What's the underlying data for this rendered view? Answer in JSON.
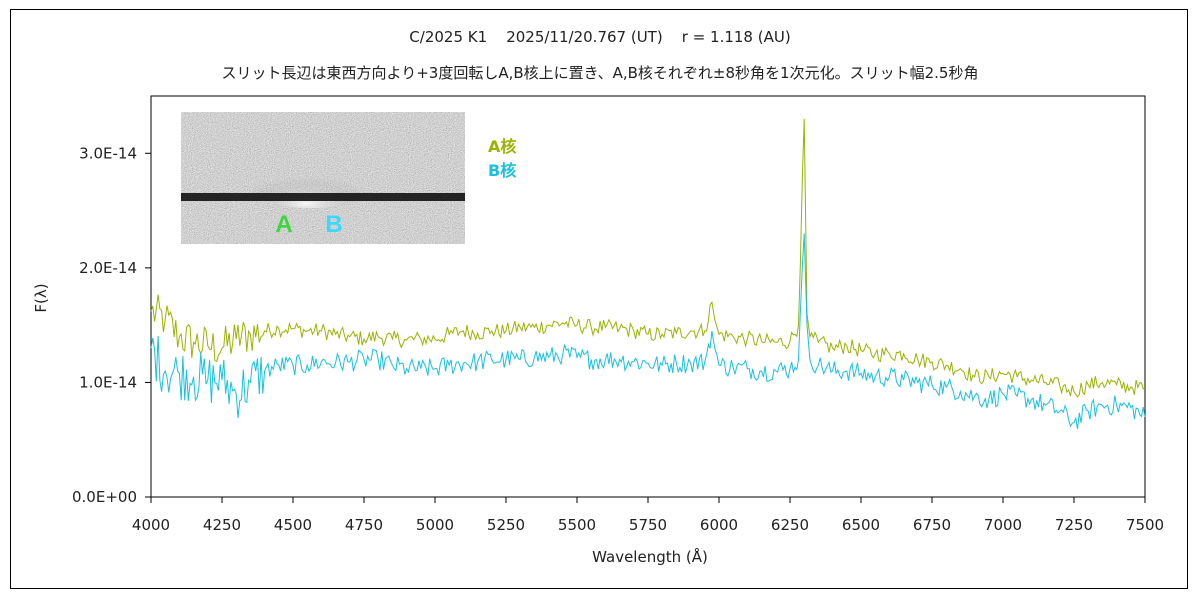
{
  "title": "C/2025 K1    2025/11/20.767 (UT)    r = 1.118 (AU)",
  "subtitle": "スリット長辺は東西方向より+3度回転しA,B核上に置き、A,B核それぞれ±8秒角を1次元化。スリット幅2.5秒角",
  "colors": {
    "seriesA": "#99b400",
    "seriesB": "#18c1e0",
    "labelA": "#3dd63d",
    "labelB": "#39d9ff"
  },
  "inset": {
    "label_a": "A",
    "label_b": "B"
  },
  "chart_data": {
    "type": "line",
    "xlabel": "Wavelength (Å)",
    "ylabel": "F(λ)",
    "xlim": [
      4000,
      7500
    ],
    "ylim": [
      0,
      3.5e-14
    ],
    "xticks": [
      4000,
      4250,
      4500,
      4750,
      5000,
      5250,
      5500,
      5750,
      6000,
      6250,
      6500,
      6750,
      7000,
      7250,
      7500
    ],
    "xtick_labels": [
      "4000",
      "4250",
      "4500",
      "4750",
      "5000",
      "5250",
      "5500",
      "5750",
      "6000",
      "6250",
      "6500",
      "6750",
      "7000",
      "7250",
      "7500"
    ],
    "yticks": [
      0,
      1e-14,
      2e-14,
      3e-14
    ],
    "ytick_labels": [
      "0.0E+00",
      "1.0E-14",
      "2.0E-14",
      "3.0E-14"
    ],
    "grid": false,
    "legend_position": "top-left",
    "series": [
      {
        "name": "A核",
        "x": [
          4000,
          4050,
          4100,
          4150,
          4200,
          4250,
          4300,
          4350,
          4400,
          4450,
          4500,
          4550,
          4600,
          4650,
          4700,
          4750,
          4800,
          4850,
          4900,
          4950,
          5000,
          5050,
          5100,
          5150,
          5200,
          5250,
          5300,
          5350,
          5400,
          5450,
          5500,
          5550,
          5600,
          5650,
          5700,
          5750,
          5800,
          5850,
          5900,
          5950,
          5975,
          5985,
          6000,
          6050,
          6100,
          6150,
          6200,
          6250,
          6280,
          6300,
          6310,
          6320,
          6350,
          6400,
          6450,
          6500,
          6550,
          6600,
          6650,
          6700,
          6750,
          6800,
          6850,
          6900,
          6950,
          7000,
          7050,
          7100,
          7150,
          7200,
          7250,
          7300,
          7350,
          7400,
          7450,
          7500
        ],
        "y": [
          1.62e-14,
          1.55e-14,
          1.4e-14,
          1.35e-14,
          1.32e-14,
          1.3e-14,
          1.38e-14,
          1.42e-14,
          1.45e-14,
          1.47e-14,
          1.47e-14,
          1.45e-14,
          1.45e-14,
          1.42e-14,
          1.4e-14,
          1.38e-14,
          1.4e-14,
          1.38e-14,
          1.37e-14,
          1.38e-14,
          1.38e-14,
          1.42e-14,
          1.45e-14,
          1.43e-14,
          1.45e-14,
          1.45e-14,
          1.48e-14,
          1.48e-14,
          1.5e-14,
          1.52e-14,
          1.5e-14,
          1.48e-14,
          1.48e-14,
          1.47e-14,
          1.45e-14,
          1.42e-14,
          1.42e-14,
          1.43e-14,
          1.45e-14,
          1.45e-14,
          1.7e-14,
          1.55e-14,
          1.42e-14,
          1.4e-14,
          1.38e-14,
          1.36e-14,
          1.35e-14,
          1.36e-14,
          1.5e-14,
          3.3e-14,
          1.6e-14,
          1.4e-14,
          1.35e-14,
          1.3e-14,
          1.32e-14,
          1.28e-14,
          1.25e-14,
          1.25e-14,
          1.25e-14,
          1.2e-14,
          1.18e-14,
          1.15e-14,
          1.12e-14,
          1.05e-14,
          1.05e-14,
          1.08e-14,
          1.05e-14,
          1.02e-14,
          1e-14,
          9.7e-15,
          9.2e-15,
          9.8e-15,
          1e-14,
          9.8e-15,
          9.6e-15,
          9.5e-15
        ]
      },
      {
        "name": "B核",
        "x": [
          4000,
          4050,
          4100,
          4150,
          4200,
          4250,
          4300,
          4350,
          4400,
          4450,
          4500,
          4550,
          4600,
          4650,
          4700,
          4750,
          4800,
          4850,
          4900,
          4950,
          5000,
          5050,
          5100,
          5150,
          5200,
          5250,
          5300,
          5350,
          5400,
          5450,
          5500,
          5550,
          5600,
          5650,
          5700,
          5750,
          5800,
          5850,
          5900,
          5950,
          5975,
          5985,
          6000,
          6050,
          6100,
          6150,
          6200,
          6250,
          6280,
          6300,
          6310,
          6320,
          6350,
          6400,
          6450,
          6500,
          6550,
          6600,
          6650,
          6700,
          6750,
          6800,
          6850,
          6900,
          6950,
          7000,
          7050,
          7100,
          7150,
          7200,
          7250,
          7300,
          7350,
          7400,
          7450,
          7500
        ],
        "y": [
          1.3e-14,
          1.1e-14,
          1.08e-14,
          1.05e-14,
          1.02e-14,
          1.02e-14,
          9e-15,
          1e-14,
          1.1e-14,
          1.15e-14,
          1.15e-14,
          1.15e-14,
          1.18e-14,
          1.17e-14,
          1.18e-14,
          1.2e-14,
          1.2e-14,
          1.15e-14,
          1.12e-14,
          1.12e-14,
          1.12e-14,
          1.15e-14,
          1.17e-14,
          1.18e-14,
          1.2e-14,
          1.2e-14,
          1.2e-14,
          1.22e-14,
          1.22e-14,
          1.25e-14,
          1.22e-14,
          1.2e-14,
          1.2e-14,
          1.2e-14,
          1.18e-14,
          1.17e-14,
          1.15e-14,
          1.17e-14,
          1.17e-14,
          1.18e-14,
          1.45e-14,
          1.3e-14,
          1.15e-14,
          1.13e-14,
          1.12e-14,
          1.1e-14,
          1.1e-14,
          1.12e-14,
          1.2e-14,
          2.3e-14,
          1.5e-14,
          1.2e-14,
          1.15e-14,
          1.1e-14,
          1.1e-14,
          1.08e-14,
          1.05e-14,
          1.05e-14,
          1.02e-14,
          1e-14,
          9.8e-15,
          9.6e-15,
          9.2e-15,
          8.8e-15,
          8.5e-15,
          9e-15,
          8.8e-15,
          8.5e-15,
          8e-15,
          7.5e-15,
          6.5e-15,
          7.5e-15,
          8e-15,
          8e-15,
          7.8e-15,
          7e-15
        ]
      }
    ]
  }
}
